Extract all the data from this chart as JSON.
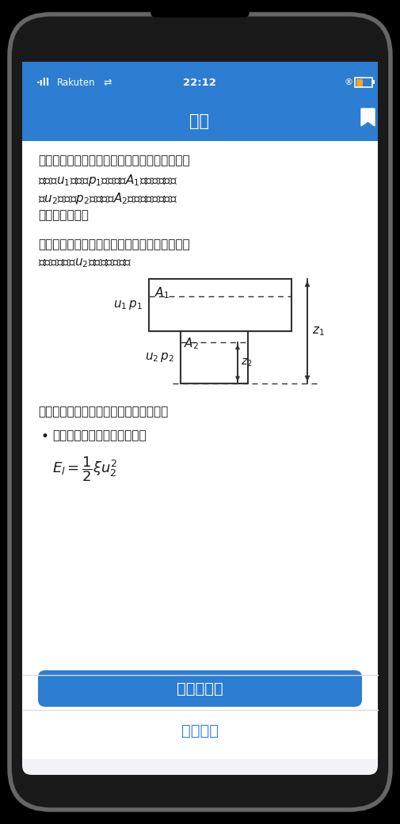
{
  "bg_color": "#000000",
  "phone_bg": "#1a1a1a",
  "screen_bg": "#f2f2f7",
  "content_bg": "#ffffff",
  "header_color": "#2d7dd2",
  "button_color": "#2d7dd2",
  "button_text_color": "#ffffff",
  "secondary_button_bg": "#ffffff",
  "secondary_button_text_color": "#2d7dd2",
  "header_title": "問題",
  "status_time": "22:12",
  "status_left": "Rakuten",
  "para1_line1": "以下の図のような配管システムにおいて、上流",
  "para1_line2": "（流速$u_1$、圧力$p_1$、断面積$A_1$）と下流（流",
  "para1_line3": "速$u_2$、圧力$p_2$、断面積$A_2$）の間で流体が移",
  "para1_line4": "動しています。",
  "para2_line1": "ベルヌーイの定理と流量一定の条件を用いて、",
  "para2_line2": "下流側の流速$u_2$を求めなさい。",
  "cond_title": "ただし、次の条件が与えられています。",
  "bullet_text": "圧力損失によるエネルギー：",
  "button1_text": "結果を見る",
  "button2_text": "終了する",
  "diagram_line_color": "#333333",
  "text_color": "#1a1a1a",
  "separator_color": "#dddddd",
  "phone_border_color": "#666666",
  "notch_color": "#000000"
}
